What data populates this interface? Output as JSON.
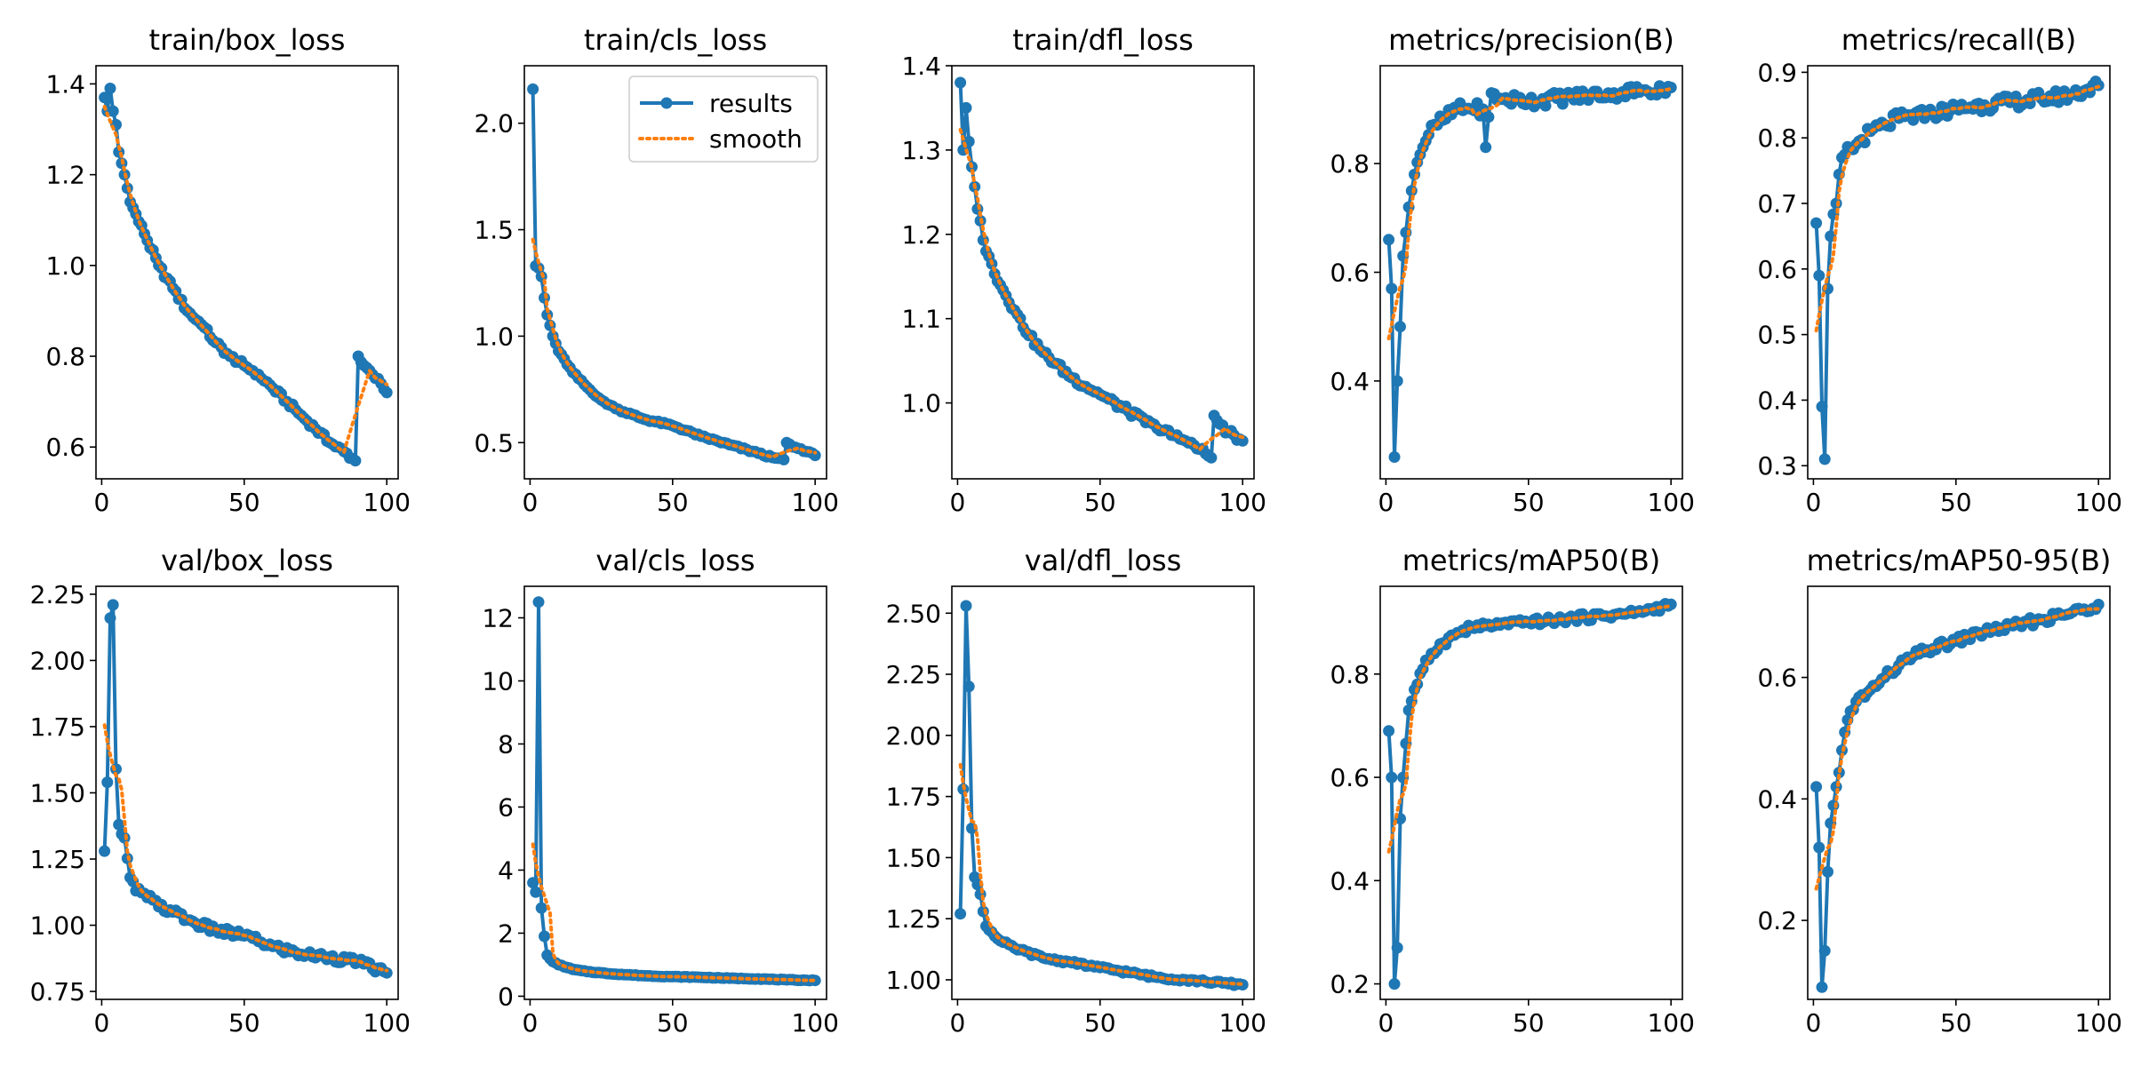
{
  "colors": {
    "results": "#1f77b4",
    "smooth": "#ff7f0e",
    "axis": "#000000",
    "background": "#ffffff"
  },
  "legend": {
    "location": "top-right",
    "results_label": "results",
    "smooth_label": "smooth"
  },
  "chart_data": [
    {
      "type": "line",
      "title": "train/box_loss",
      "xlim": [
        -2,
        104
      ],
      "ylim": [
        0.53,
        1.44
      ],
      "xticks": [
        0,
        50,
        100
      ],
      "xtick_labels": [
        "0",
        "50",
        "100"
      ],
      "yticks": [
        0.6,
        0.8,
        1.0,
        1.2,
        1.4
      ],
      "ytick_labels": [
        "0.6",
        "0.8",
        "1.0",
        "1.2",
        "1.4"
      ],
      "knots": [
        [
          1,
          1.37
        ],
        [
          2,
          1.34
        ],
        [
          3,
          1.39
        ],
        [
          4,
          1.34
        ],
        [
          5,
          1.31
        ],
        [
          6,
          1.25
        ],
        [
          8,
          1.2
        ],
        [
          10,
          1.14
        ],
        [
          15,
          1.07
        ],
        [
          20,
          1.0
        ],
        [
          25,
          0.95
        ],
        [
          30,
          0.9
        ],
        [
          35,
          0.87
        ],
        [
          40,
          0.83
        ],
        [
          45,
          0.8
        ],
        [
          50,
          0.78
        ],
        [
          55,
          0.76
        ],
        [
          60,
          0.73
        ],
        [
          65,
          0.7
        ],
        [
          70,
          0.67
        ],
        [
          75,
          0.64
        ],
        [
          80,
          0.61
        ],
        [
          85,
          0.59
        ],
        [
          89,
          0.57
        ],
        [
          90,
          0.8
        ],
        [
          92,
          0.78
        ],
        [
          95,
          0.76
        ],
        [
          98,
          0.74
        ],
        [
          100,
          0.72
        ]
      ],
      "noise": 0.006,
      "smooth_window": 4
    },
    {
      "type": "line",
      "title": "train/cls_loss",
      "xlim": [
        -2,
        104
      ],
      "ylim": [
        0.33,
        2.27
      ],
      "xticks": [
        0,
        50,
        100
      ],
      "xtick_labels": [
        "0",
        "50",
        "100"
      ],
      "yticks": [
        0.5,
        1.0,
        1.5,
        2.0
      ],
      "ytick_labels": [
        "0.5",
        "1.0",
        "1.5",
        "2.0"
      ],
      "knots": [
        [
          1,
          2.16
        ],
        [
          2,
          1.33
        ],
        [
          3,
          1.32
        ],
        [
          4,
          1.28
        ],
        [
          5,
          1.18
        ],
        [
          6,
          1.1
        ],
        [
          8,
          1.0
        ],
        [
          10,
          0.93
        ],
        [
          15,
          0.83
        ],
        [
          20,
          0.76
        ],
        [
          25,
          0.7
        ],
        [
          30,
          0.66
        ],
        [
          40,
          0.61
        ],
        [
          50,
          0.58
        ],
        [
          60,
          0.53
        ],
        [
          70,
          0.49
        ],
        [
          80,
          0.45
        ],
        [
          85,
          0.43
        ],
        [
          89,
          0.42
        ],
        [
          90,
          0.5
        ],
        [
          92,
          0.48
        ],
        [
          95,
          0.47
        ],
        [
          100,
          0.44
        ]
      ],
      "noise": 0.005,
      "smooth_window": 4
    },
    {
      "type": "line",
      "title": "train/dfl_loss",
      "xlim": [
        -2,
        104
      ],
      "ylim": [
        0.91,
        1.4
      ],
      "xticks": [
        0,
        50,
        100
      ],
      "xtick_labels": [
        "0",
        "50",
        "100"
      ],
      "yticks": [
        1.0,
        1.1,
        1.2,
        1.3,
        1.4
      ],
      "ytick_labels": [
        "1.0",
        "1.1",
        "1.2",
        "1.3",
        "1.4"
      ],
      "knots": [
        [
          1,
          1.38
        ],
        [
          2,
          1.3
        ],
        [
          3,
          1.35
        ],
        [
          4,
          1.31
        ],
        [
          5,
          1.28
        ],
        [
          7,
          1.23
        ],
        [
          10,
          1.18
        ],
        [
          15,
          1.14
        ],
        [
          20,
          1.11
        ],
        [
          25,
          1.08
        ],
        [
          30,
          1.06
        ],
        [
          40,
          1.03
        ],
        [
          50,
          1.01
        ],
        [
          60,
          0.99
        ],
        [
          70,
          0.97
        ],
        [
          80,
          0.955
        ],
        [
          85,
          0.945
        ],
        [
          89,
          0.935
        ],
        [
          90,
          0.985
        ],
        [
          92,
          0.975
        ],
        [
          95,
          0.965
        ],
        [
          100,
          0.955
        ]
      ],
      "noise": 0.004,
      "smooth_window": 4
    },
    {
      "type": "line",
      "title": "metrics/precision(B)",
      "xlim": [
        -2,
        104
      ],
      "ylim": [
        0.22,
        0.98
      ],
      "xticks": [
        0,
        50,
        100
      ],
      "xtick_labels": [
        "0",
        "50",
        "100"
      ],
      "yticks": [
        0.4,
        0.6,
        0.8
      ],
      "ytick_labels": [
        "0.4",
        "0.6",
        "0.8"
      ],
      "knots": [
        [
          1,
          0.66
        ],
        [
          2,
          0.57
        ],
        [
          3,
          0.26
        ],
        [
          4,
          0.4
        ],
        [
          5,
          0.5
        ],
        [
          6,
          0.63
        ],
        [
          8,
          0.72
        ],
        [
          10,
          0.78
        ],
        [
          13,
          0.83
        ],
        [
          16,
          0.87
        ],
        [
          20,
          0.88
        ],
        [
          25,
          0.9
        ],
        [
          30,
          0.9
        ],
        [
          34,
          0.9
        ],
        [
          35,
          0.83
        ],
        [
          37,
          0.93
        ],
        [
          40,
          0.92
        ],
        [
          50,
          0.915
        ],
        [
          60,
          0.92
        ],
        [
          70,
          0.925
        ],
        [
          80,
          0.93
        ],
        [
          90,
          0.935
        ],
        [
          100,
          0.94
        ]
      ],
      "noise": 0.012,
      "smooth_window": 4
    },
    {
      "type": "line",
      "title": "metrics/recall(B)",
      "xlim": [
        -2,
        104
      ],
      "ylim": [
        0.28,
        0.91
      ],
      "xticks": [
        0,
        50,
        100
      ],
      "xtick_labels": [
        "0",
        "50",
        "100"
      ],
      "yticks": [
        0.3,
        0.4,
        0.5,
        0.6,
        0.7,
        0.8,
        0.9
      ],
      "ytick_labels": [
        "0.3",
        "0.4",
        "0.5",
        "0.6",
        "0.7",
        "0.8",
        "0.9"
      ],
      "knots": [
        [
          1,
          0.67
        ],
        [
          2,
          0.59
        ],
        [
          3,
          0.39
        ],
        [
          4,
          0.31
        ],
        [
          5,
          0.57
        ],
        [
          6,
          0.65
        ],
        [
          8,
          0.7
        ],
        [
          10,
          0.77
        ],
        [
          15,
          0.79
        ],
        [
          20,
          0.81
        ],
        [
          25,
          0.82
        ],
        [
          30,
          0.83
        ],
        [
          40,
          0.835
        ],
        [
          50,
          0.845
        ],
        [
          60,
          0.85
        ],
        [
          70,
          0.855
        ],
        [
          80,
          0.86
        ],
        [
          90,
          0.865
        ],
        [
          100,
          0.88
        ]
      ],
      "noise": 0.01,
      "smooth_window": 4
    },
    {
      "type": "line",
      "title": "val/box_loss",
      "xlim": [
        -2,
        104
      ],
      "ylim": [
        0.72,
        2.28
      ],
      "xticks": [
        0,
        50,
        100
      ],
      "xtick_labels": [
        "0",
        "50",
        "100"
      ],
      "yticks": [
        0.75,
        1.0,
        1.25,
        1.5,
        1.75,
        2.0,
        2.25
      ],
      "ytick_labels": [
        "0.75",
        "1.00",
        "1.25",
        "1.50",
        "1.75",
        "2.00",
        "2.25"
      ],
      "knots": [
        [
          1,
          1.28
        ],
        [
          2,
          1.54
        ],
        [
          3,
          2.16
        ],
        [
          4,
          2.21
        ],
        [
          5,
          1.59
        ],
        [
          6,
          1.38
        ],
        [
          8,
          1.33
        ],
        [
          10,
          1.18
        ],
        [
          12,
          1.13
        ],
        [
          15,
          1.12
        ],
        [
          20,
          1.07
        ],
        [
          25,
          1.05
        ],
        [
          30,
          1.02
        ],
        [
          40,
          0.98
        ],
        [
          50,
          0.96
        ],
        [
          60,
          0.92
        ],
        [
          70,
          0.89
        ],
        [
          80,
          0.88
        ],
        [
          90,
          0.86
        ],
        [
          100,
          0.82
        ]
      ],
      "noise": 0.015,
      "smooth_window": 4
    },
    {
      "type": "line",
      "title": "val/cls_loss",
      "xlim": [
        -2,
        104
      ],
      "ylim": [
        -0.1,
        13.0
      ],
      "xticks": [
        0,
        50,
        100
      ],
      "xtick_labels": [
        "0",
        "50",
        "100"
      ],
      "yticks": [
        0,
        2,
        4,
        6,
        8,
        10,
        12
      ],
      "ytick_labels": [
        "0",
        "2",
        "4",
        "6",
        "8",
        "10",
        "12"
      ],
      "knots": [
        [
          1,
          3.6
        ],
        [
          2,
          3.3
        ],
        [
          3,
          12.5
        ],
        [
          4,
          2.8
        ],
        [
          5,
          1.9
        ],
        [
          6,
          1.3
        ],
        [
          8,
          1.1
        ],
        [
          10,
          1.0
        ],
        [
          15,
          0.85
        ],
        [
          20,
          0.78
        ],
        [
          30,
          0.7
        ],
        [
          40,
          0.65
        ],
        [
          50,
          0.62
        ],
        [
          60,
          0.6
        ],
        [
          70,
          0.57
        ],
        [
          80,
          0.55
        ],
        [
          90,
          0.52
        ],
        [
          100,
          0.5
        ]
      ],
      "noise": 0.01,
      "smooth_window": 4
    },
    {
      "type": "line",
      "title": "val/dfl_loss",
      "xlim": [
        -2,
        104
      ],
      "ylim": [
        0.92,
        2.61
      ],
      "xticks": [
        0,
        50,
        100
      ],
      "xtick_labels": [
        "0",
        "50",
        "100"
      ],
      "yticks": [
        1.0,
        1.25,
        1.5,
        1.75,
        2.0,
        2.25,
        2.5
      ],
      "ytick_labels": [
        "1.00",
        "1.25",
        "1.50",
        "1.75",
        "2.00",
        "2.25",
        "2.50"
      ],
      "knots": [
        [
          1,
          1.27
        ],
        [
          2,
          1.78
        ],
        [
          3,
          2.53
        ],
        [
          4,
          2.2
        ],
        [
          5,
          1.62
        ],
        [
          6,
          1.42
        ],
        [
          8,
          1.35
        ],
        [
          10,
          1.22
        ],
        [
          15,
          1.16
        ],
        [
          20,
          1.13
        ],
        [
          30,
          1.09
        ],
        [
          40,
          1.07
        ],
        [
          50,
          1.05
        ],
        [
          60,
          1.03
        ],
        [
          70,
          1.01
        ],
        [
          80,
          1.0
        ],
        [
          90,
          0.99
        ],
        [
          100,
          0.98
        ]
      ],
      "noise": 0.006,
      "smooth_window": 4
    },
    {
      "type": "line",
      "title": "metrics/mAP50(B)",
      "xlim": [
        -2,
        104
      ],
      "ylim": [
        0.17,
        0.97
      ],
      "xticks": [
        0,
        50,
        100
      ],
      "xtick_labels": [
        "0",
        "50",
        "100"
      ],
      "yticks": [
        0.2,
        0.4,
        0.6,
        0.8
      ],
      "ytick_labels": [
        "0.2",
        "0.4",
        "0.6",
        "0.8"
      ],
      "knots": [
        [
          1,
          0.69
        ],
        [
          2,
          0.6
        ],
        [
          3,
          0.2
        ],
        [
          4,
          0.27
        ],
        [
          5,
          0.52
        ],
        [
          6,
          0.6
        ],
        [
          8,
          0.73
        ],
        [
          10,
          0.77
        ],
        [
          13,
          0.81
        ],
        [
          16,
          0.84
        ],
        [
          20,
          0.86
        ],
        [
          25,
          0.88
        ],
        [
          30,
          0.89
        ],
        [
          40,
          0.895
        ],
        [
          50,
          0.9
        ],
        [
          60,
          0.905
        ],
        [
          70,
          0.91
        ],
        [
          80,
          0.915
        ],
        [
          90,
          0.92
        ],
        [
          100,
          0.935
        ]
      ],
      "noise": 0.007,
      "smooth_window": 4
    },
    {
      "type": "line",
      "title": "metrics/mAP50-95(B)",
      "xlim": [
        -2,
        104
      ],
      "ylim": [
        0.07,
        0.75
      ],
      "xticks": [
        0,
        50,
        100
      ],
      "xtick_labels": [
        "0",
        "50",
        "100"
      ],
      "yticks": [
        0.2,
        0.4,
        0.6
      ],
      "ytick_labels": [
        "0.2",
        "0.4",
        "0.6"
      ],
      "knots": [
        [
          1,
          0.42
        ],
        [
          2,
          0.32
        ],
        [
          3,
          0.09
        ],
        [
          4,
          0.15
        ],
        [
          5,
          0.28
        ],
        [
          6,
          0.36
        ],
        [
          8,
          0.42
        ],
        [
          10,
          0.48
        ],
        [
          12,
          0.53
        ],
        [
          15,
          0.56
        ],
        [
          20,
          0.58
        ],
        [
          25,
          0.6
        ],
        [
          30,
          0.62
        ],
        [
          35,
          0.635
        ],
        [
          40,
          0.645
        ],
        [
          50,
          0.66
        ],
        [
          60,
          0.675
        ],
        [
          70,
          0.685
        ],
        [
          80,
          0.695
        ],
        [
          90,
          0.705
        ],
        [
          100,
          0.72
        ]
      ],
      "noise": 0.007,
      "smooth_window": 4
    }
  ]
}
